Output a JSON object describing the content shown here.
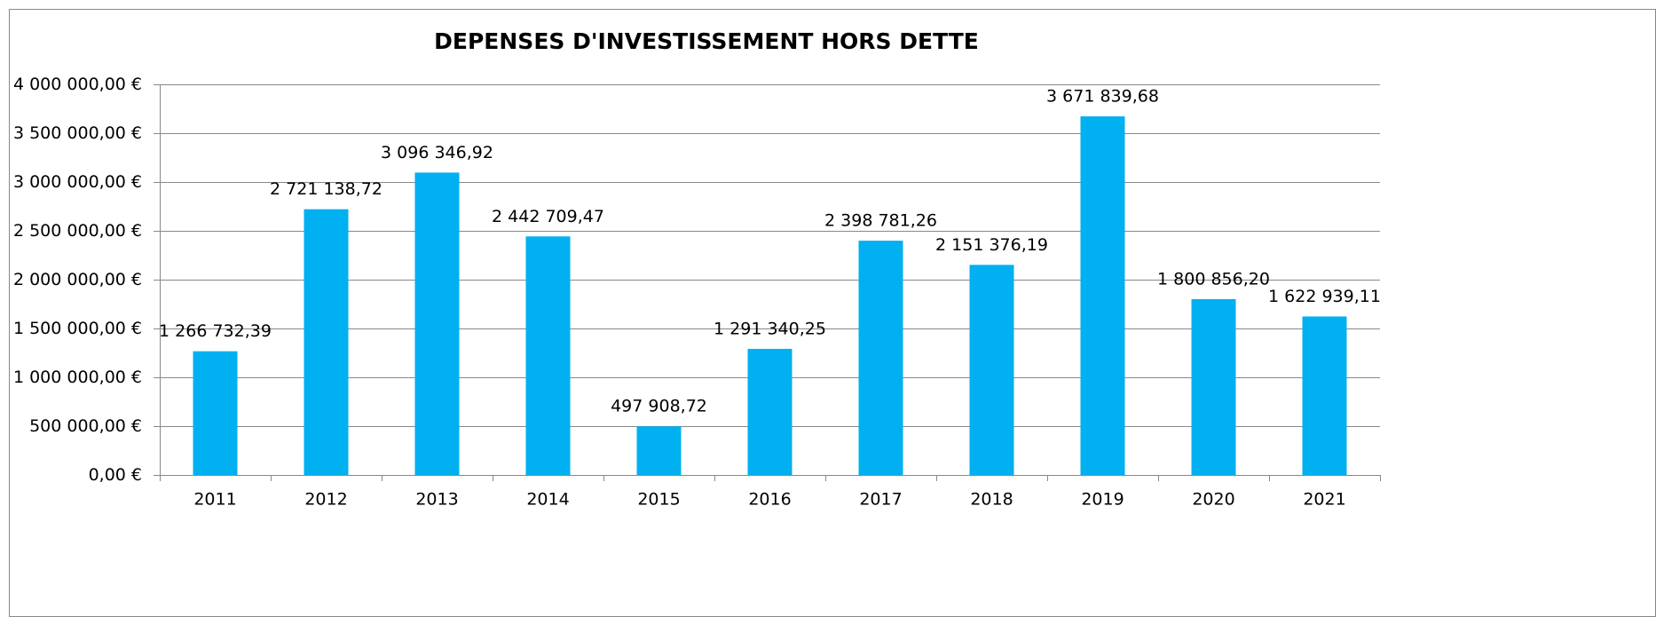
{
  "chart_data": {
    "type": "bar",
    "title": "DEPENSES D'INVESTISSEMENT HORS DETTE",
    "categories": [
      "2011",
      "2012",
      "2013",
      "2014",
      "2015",
      "2016",
      "2017",
      "2018",
      "2019",
      "2020",
      "2021"
    ],
    "values": [
      1266732.39,
      2721138.72,
      3096346.92,
      2442709.47,
      497908.72,
      1291340.25,
      2398781.26,
      2151376.19,
      3671839.68,
      1800856.2,
      1622939.11
    ],
    "value_labels": [
      "1 266 732,39",
      "2 721 138,72",
      "3 096 346,92",
      "2 442 709,47",
      "497 908,72",
      "1 291 340,25",
      "2 398 781,26",
      "2 151 376,19",
      "3 671 839,68",
      "1 800 856,20",
      "1 622 939,11"
    ],
    "color": "#00b0f0",
    "ylim": [
      0,
      4000000
    ],
    "yticks": [
      {
        "value": 0,
        "label": "0,00 €"
      },
      {
        "value": 500000,
        "label": "500 000,00 €"
      },
      {
        "value": 1000000,
        "label": "1 000 000,00 €"
      },
      {
        "value": 1500000,
        "label": "1 500 000,00 €"
      },
      {
        "value": 2000000,
        "label": "2 000 000,00 €"
      },
      {
        "value": 2500000,
        "label": "2 500 000,00 €"
      },
      {
        "value": 3000000,
        "label": "3 000 000,00 €"
      },
      {
        "value": 3500000,
        "label": "3 500 000,00 €"
      },
      {
        "value": 4000000,
        "label": "4 000 000,00 €"
      }
    ],
    "grid": true
  }
}
